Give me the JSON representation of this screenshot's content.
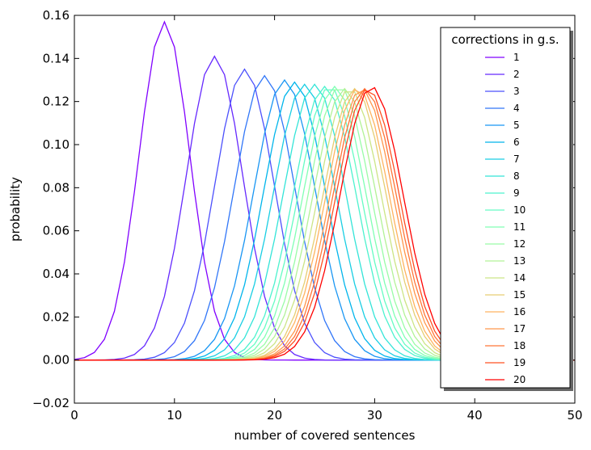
{
  "chart_data": {
    "type": "line",
    "xlabel": "number of covered sentences",
    "ylabel": "probability",
    "xlim": [
      0,
      50
    ],
    "ylim": [
      -0.02,
      0.16
    ],
    "x_ticks": [
      "0",
      "10",
      "20",
      "30",
      "40",
      "50"
    ],
    "y_ticks": [
      "−0.02",
      "0.00",
      "0.02",
      "0.04",
      "0.06",
      "0.08",
      "0.10",
      "0.12",
      "0.14",
      "0.16"
    ],
    "grid": false,
    "legend": {
      "title": "corrections in g.s.",
      "position": "top-right"
    },
    "colormap": "rainbow",
    "curve_model": "approximately Gaussian probability distributions; peak position and height per series",
    "series": [
      {
        "name": "1",
        "peak_x": 9.0,
        "peak_y": 0.157,
        "color": "#8000ff"
      },
      {
        "name": "2",
        "peak_x": 14.0,
        "peak_y": 0.141,
        "color": "#6629fe"
      },
      {
        "name": "3",
        "peak_x": 17.0,
        "peak_y": 0.135,
        "color": "#4c50fc"
      },
      {
        "name": "4",
        "peak_x": 19.0,
        "peak_y": 0.132,
        "color": "#3176f8"
      },
      {
        "name": "5",
        "peak_x": 21.0,
        "peak_y": 0.13,
        "color": "#1996f3"
      },
      {
        "name": "6",
        "peak_x": 22.0,
        "peak_y": 0.129,
        "color": "#00b5eb"
      },
      {
        "name": "7",
        "peak_x": 23.0,
        "peak_y": 0.128,
        "color": "#19cee3"
      },
      {
        "name": "8",
        "peak_x": 24.0,
        "peak_y": 0.128,
        "color": "#33e4d8"
      },
      {
        "name": "9",
        "peak_x": 25.0,
        "peak_y": 0.127,
        "color": "#4cf2ce"
      },
      {
        "name": "10",
        "peak_x": 25.5,
        "peak_y": 0.127,
        "color": "#66fcc3"
      },
      {
        "name": "11",
        "peak_x": 26.0,
        "peak_y": 0.127,
        "color": "#80ffb4"
      },
      {
        "name": "12",
        "peak_x": 26.5,
        "peak_y": 0.127,
        "color": "#99fca7"
      },
      {
        "name": "13",
        "peak_x": 27.0,
        "peak_y": 0.126,
        "color": "#b2f296"
      },
      {
        "name": "14",
        "peak_x": 27.5,
        "peak_y": 0.126,
        "color": "#cce586"
      },
      {
        "name": "15",
        "peak_x": 28.0,
        "peak_y": 0.126,
        "color": "#e6ce73"
      },
      {
        "name": "16",
        "peak_x": 28.3,
        "peak_y": 0.126,
        "color": "#ffb360"
      },
      {
        "name": "17",
        "peak_x": 28.7,
        "peak_y": 0.126,
        "color": "#ff964c"
      },
      {
        "name": "18",
        "peak_x": 29.0,
        "peak_y": 0.126,
        "color": "#ff7638"
      },
      {
        "name": "19",
        "peak_x": 29.3,
        "peak_y": 0.126,
        "color": "#ff5023"
      },
      {
        "name": "20",
        "peak_x": 29.7,
        "peak_y": 0.127,
        "color": "#ff0000"
      }
    ]
  }
}
